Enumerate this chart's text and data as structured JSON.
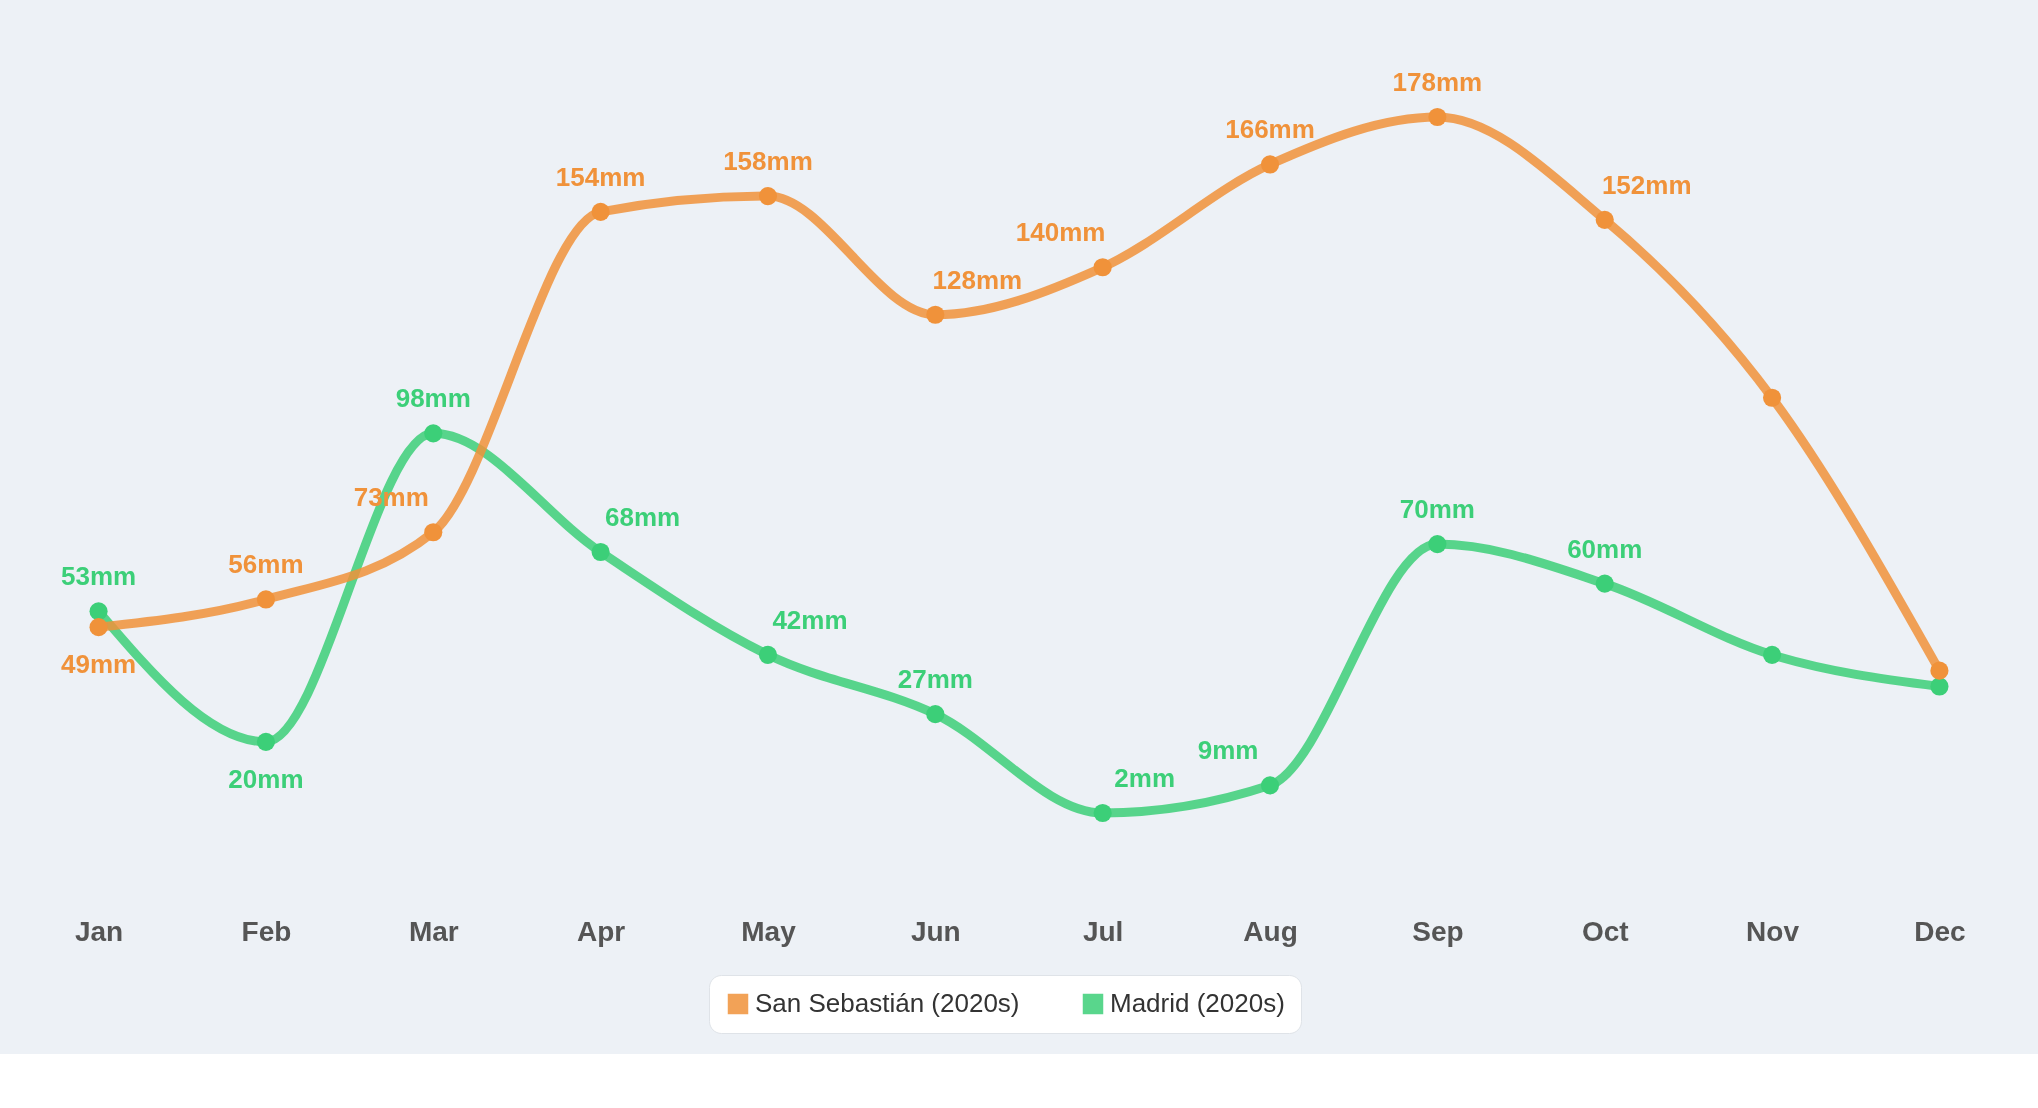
{
  "chart_data": {
    "type": "line",
    "categories": [
      "Jan",
      "Feb",
      "Mar",
      "Apr",
      "May",
      "Jun",
      "Jul",
      "Aug",
      "Sep",
      "Oct",
      "Nov",
      "Dec"
    ],
    "series": [
      {
        "name": "San Sebastián (2020s)",
        "color": "#f0923a",
        "values": [
          49,
          56,
          73,
          154,
          158,
          128,
          140,
          166,
          178,
          152,
          107,
          38
        ],
        "value_labels": [
          "49mm",
          "56mm",
          "73mm",
          "154mm",
          "158mm",
          "128mm",
          "140mm",
          "166mm",
          "178mm",
          "152mm",
          null,
          null
        ]
      },
      {
        "name": "Madrid (2020s)",
        "color": "#3ccf78",
        "values": [
          53,
          20,
          98,
          68,
          42,
          27,
          2,
          9,
          70,
          60,
          42,
          34
        ],
        "value_labels": [
          "53mm",
          "20mm",
          "98mm",
          "68mm",
          "42mm",
          "27mm",
          "2mm",
          "9mm",
          "70mm",
          "60mm",
          null,
          null
        ]
      }
    ],
    "legend": "bottom",
    "marker": "circle"
  }
}
